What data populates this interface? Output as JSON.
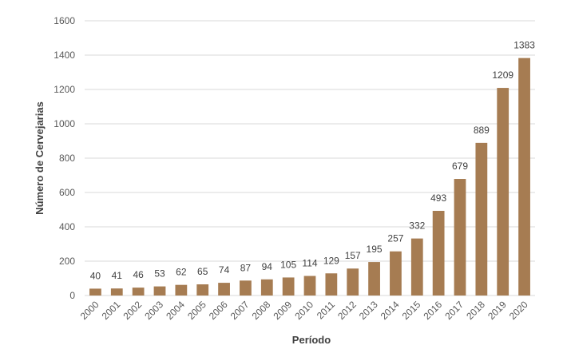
{
  "chart_data": {
    "type": "bar",
    "xlabel": "Período",
    "ylabel": "Número de Cervejarias",
    "ylim": [
      0,
      1600
    ],
    "yticks": [
      0,
      200,
      400,
      600,
      800,
      1000,
      1200,
      1400,
      1600
    ],
    "grid": true,
    "categories": [
      "2000",
      "2001",
      "2002",
      "2003",
      "2004",
      "2005",
      "2006",
      "2007",
      "2008",
      "2009",
      "2010",
      "2011",
      "2012",
      "2013",
      "2014",
      "2015",
      "2016",
      "2017",
      "2018",
      "2019",
      "2020"
    ],
    "values": [
      40,
      41,
      46,
      53,
      62,
      65,
      74,
      87,
      94,
      105,
      114,
      129,
      157,
      195,
      257,
      332,
      493,
      679,
      889,
      1209,
      1383
    ],
    "bar_color": "#a67c52",
    "label_color": "#404040",
    "highlight_label_index": 2,
    "highlight_label_color": "#c08a5a"
  }
}
